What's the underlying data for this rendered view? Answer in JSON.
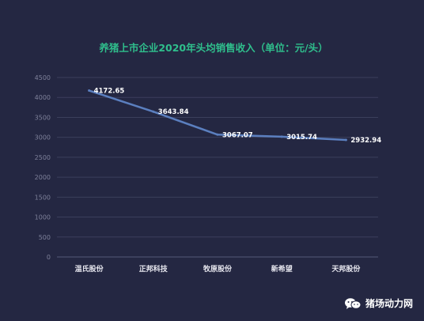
{
  "chart_data": {
    "type": "line",
    "title": "养猪上市企业2020年头均销售收入（单位：元/头）",
    "categories": [
      "温氏股份",
      "正邦科技",
      "牧原股份",
      "新希望",
      "天邦股份"
    ],
    "values": [
      4172.65,
      3643.84,
      3067.07,
      3015.74,
      2932.94
    ],
    "value_labels": [
      "4172.65",
      "3643.84",
      "3067.07",
      "3015.74",
      "2932.94"
    ],
    "ylim": [
      0,
      4500
    ],
    "yticks": [
      "0",
      "500",
      "1000",
      "1500",
      "2000",
      "2500",
      "3000",
      "3500",
      "4000",
      "4500"
    ],
    "grid": true,
    "line_color": "#5b7fbf",
    "title_color": "#2fbf8c"
  },
  "watermark": {
    "text": "猪场动力网",
    "icon": "wechat-icon"
  }
}
